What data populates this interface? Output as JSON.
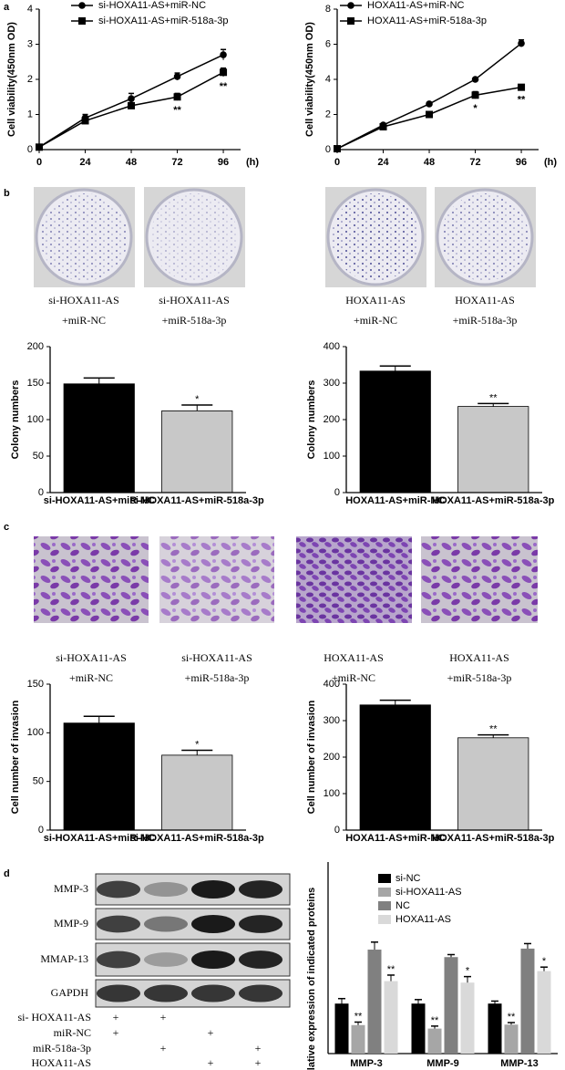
{
  "panel_labels": [
    "a",
    "b",
    "c",
    "d"
  ],
  "chart_data": [
    {
      "type": "line",
      "x": [
        0,
        24,
        48,
        72,
        96
      ],
      "xlim": [
        0,
        105
      ],
      "xticks": [
        0,
        24,
        48,
        72,
        96
      ],
      "x_label": "(h)",
      "y_label": "Cell viability(450nm OD)",
      "ylim": [
        0,
        4
      ],
      "yticks": [
        0,
        1,
        2,
        3,
        4
      ],
      "series": [
        {
          "name": "si-HOXA11-AS+miR-NC",
          "color": "#000000",
          "marker": "circle",
          "values": [
            0.07,
            0.9,
            1.45,
            2.08,
            2.7
          ],
          "errors": [
            0.03,
            0.1,
            0.15,
            0.1,
            0.15
          ]
        },
        {
          "name": "si-HOXA11-AS+miR-518a-3p",
          "color": "#000000",
          "marker": "square",
          "values": [
            0.07,
            0.82,
            1.25,
            1.5,
            2.2
          ],
          "errors": [
            0.03,
            0.08,
            0.08,
            0.1,
            0.12
          ]
        }
      ],
      "annotations": [
        {
          "x": 72,
          "text": "**"
        },
        {
          "x": 96,
          "text": "**"
        }
      ]
    },
    {
      "type": "line",
      "x": [
        0,
        24,
        48,
        72,
        96
      ],
      "xlim": [
        0,
        105
      ],
      "xticks": [
        0,
        24,
        48,
        72,
        96
      ],
      "x_label": "(h)",
      "y_label": "Cell viability(450nm OD)",
      "ylim": [
        0,
        8
      ],
      "yticks": [
        0,
        2,
        4,
        6,
        8
      ],
      "series": [
        {
          "name": "HOXA11-AS+miR-NC",
          "color": "#000000",
          "marker": "circle",
          "values": [
            0.05,
            1.4,
            2.6,
            4.0,
            6.05
          ],
          "errors": [
            0.03,
            0.08,
            0.06,
            0.06,
            0.2
          ]
        },
        {
          "name": "HOXA11-AS+miR-518a-3p",
          "color": "#000000",
          "marker": "square",
          "values": [
            0.05,
            1.3,
            2.0,
            3.1,
            3.55
          ],
          "errors": [
            0.03,
            0.06,
            0.06,
            0.2,
            0.15
          ]
        }
      ],
      "annotations": [
        {
          "x": 72,
          "text": "*"
        },
        {
          "x": 96,
          "text": "**"
        }
      ]
    },
    {
      "type": "bar",
      "categories": [
        "si-HOXA11-AS+miR-NC",
        "si-HOXA11-AS+miR-518a-3p"
      ],
      "values": [
        149,
        112
      ],
      "errors": [
        8,
        8
      ],
      "colors": [
        "#000000",
        "#c8c8c8"
      ],
      "y_label": "Colony numbers",
      "ylim": [
        0,
        200
      ],
      "yticks": [
        0,
        50,
        100,
        150,
        200
      ],
      "annotations": [
        {
          "category": 1,
          "text": "*"
        }
      ]
    },
    {
      "type": "bar",
      "categories": [
        "HOXA11-AS+miR-NC",
        "HOXA11-AS+miR-518a-3p"
      ],
      "values": [
        333,
        236
      ],
      "errors": [
        14,
        8
      ],
      "colors": [
        "#000000",
        "#c8c8c8"
      ],
      "y_label": "Colony numbers",
      "ylim": [
        0,
        400
      ],
      "yticks": [
        0,
        100,
        200,
        300,
        400
      ],
      "annotations": [
        {
          "category": 1,
          "text": "**"
        }
      ]
    },
    {
      "type": "bar",
      "categories": [
        "si-HOXA11-AS+miR-NC",
        "si-HOXA11-AS+miR-518a-3p"
      ],
      "values": [
        110,
        77
      ],
      "errors": [
        7,
        5
      ],
      "colors": [
        "#000000",
        "#c8c8c8"
      ],
      "y_label": "Cell number of invasion",
      "ylim": [
        0,
        150
      ],
      "yticks": [
        0,
        50,
        100,
        150
      ],
      "annotations": [
        {
          "category": 1,
          "text": "*"
        }
      ]
    },
    {
      "type": "bar",
      "categories": [
        "HOXA11-AS+miR-NC",
        "HOXA11-AS+miR-518a-3p"
      ],
      "values": [
        343,
        253
      ],
      "errors": [
        13,
        8
      ],
      "colors": [
        "#000000",
        "#c8c8c8"
      ],
      "y_label": "Cell number of invasion",
      "ylim": [
        0,
        400
      ],
      "yticks": [
        0,
        100,
        200,
        300,
        400
      ],
      "annotations": [
        {
          "category": 1,
          "text": "**"
        }
      ]
    },
    {
      "type": "grouped-bar",
      "categories": [
        "MMP-3",
        "MMP-9",
        "MMP-13"
      ],
      "y_label": "Relative expression of indicated proteins",
      "ylim": [
        0,
        2.5
      ],
      "yticks": [],
      "series": [
        {
          "name": "si-NC",
          "color": "#000000",
          "values": [
            1.0,
            1.0,
            1.0
          ],
          "errors": [
            0.1,
            0.08,
            0.05
          ]
        },
        {
          "name": "si-HOXA11-AS",
          "color": "#a6a6a6",
          "values": [
            0.57,
            0.5,
            0.58
          ],
          "errors": [
            0.06,
            0.05,
            0.04
          ]
        },
        {
          "name": "NC",
          "color": "#808080",
          "values": [
            2.08,
            1.93,
            2.1
          ],
          "errors": [
            0.15,
            0.05,
            0.1
          ]
        },
        {
          "name": "HOXA11-AS",
          "color": "#d9d9d9",
          "values": [
            1.45,
            1.42,
            1.65
          ],
          "errors": [
            0.12,
            0.12,
            0.08
          ]
        }
      ],
      "annotations": [
        {
          "series": 1,
          "category": 0,
          "text": "**"
        },
        {
          "series": 1,
          "category": 1,
          "text": "**"
        },
        {
          "series": 1,
          "category": 2,
          "text": "**"
        },
        {
          "series": 3,
          "category": 0,
          "text": "**"
        },
        {
          "series": 3,
          "category": 1,
          "text": "*"
        },
        {
          "series": 3,
          "category": 2,
          "text": "*"
        }
      ]
    }
  ],
  "photos": {
    "b": [
      [
        "si-HOXA11-AS",
        "+miR-NC"
      ],
      [
        "si-HOXA11-AS",
        "+miR-518a-3p"
      ],
      [
        "HOXA11-AS",
        "+miR-NC"
      ],
      [
        "HOXA11-AS",
        "+miR-518a-3p"
      ]
    ],
    "c": [
      [
        "si-HOXA11-AS",
        "+miR-NC"
      ],
      [
        "si-HOXA11-AS",
        "+miR-518a-3p"
      ],
      [
        "HOXA11-AS",
        "+miR-NC"
      ],
      [
        "HOXA11-AS",
        "+miR-518a-3p"
      ]
    ]
  },
  "blot": {
    "rows": [
      "MMP-3",
      "MMP-9",
      "MMAP-13",
      "GAPDH"
    ],
    "treatments": [
      {
        "label": "si- HOXA11-AS",
        "cells": [
          "+",
          "+",
          null,
          null
        ]
      },
      {
        "label": "miR-NC",
        "cells": [
          "+",
          null,
          "+",
          null
        ]
      },
      {
        "label": "miR-518a-3p",
        "cells": [
          null,
          "+",
          null,
          "+"
        ]
      },
      {
        "label": "HOXA11-AS",
        "cells": [
          null,
          null,
          "+",
          "+"
        ]
      }
    ]
  }
}
